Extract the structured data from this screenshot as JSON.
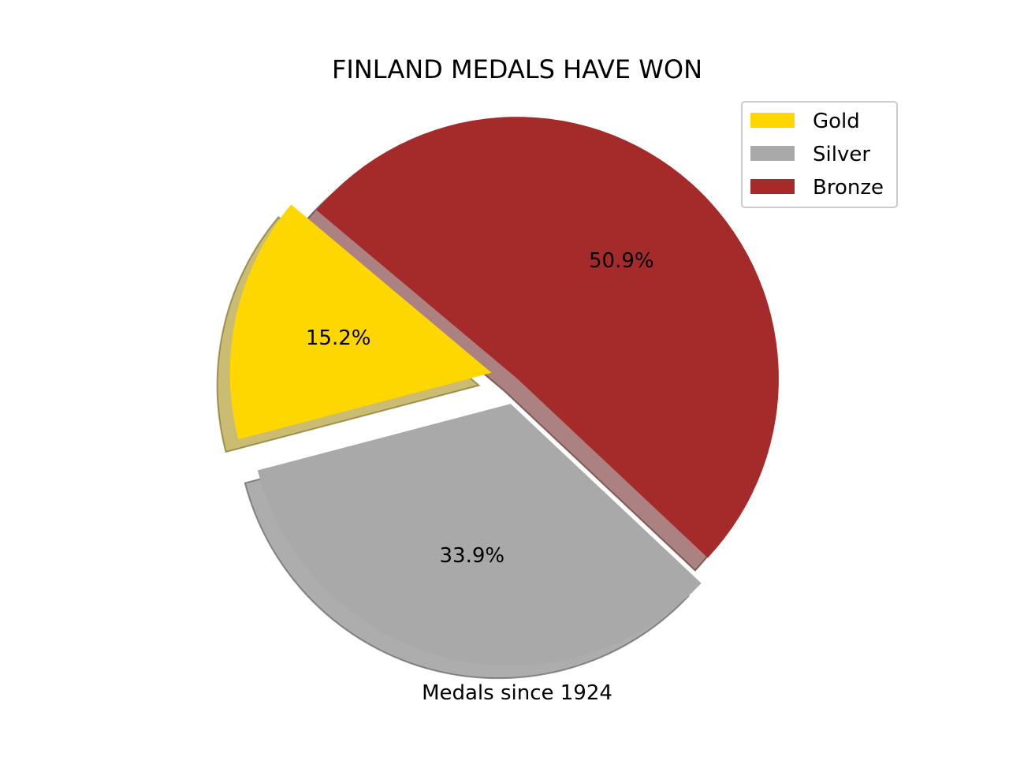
{
  "chart_data": {
    "type": "pie",
    "title": "FINLAND MEDALS HAVE WON",
    "xlabel": "Medals since 1924",
    "ylabel": "",
    "categories": [
      "Gold",
      "Silver",
      "Bronze"
    ],
    "values": [
      15.2,
      33.9,
      50.9
    ],
    "percent_labels": [
      "15.2%",
      "33.9%",
      "50.9%"
    ],
    "colors": [
      "#FFD700",
      "#A9A9A9",
      "#A52A2A"
    ],
    "exploded": [
      true,
      true,
      false
    ],
    "shadow": true,
    "start_angle_deg": 140,
    "legend": {
      "position": "top-right",
      "entries": [
        "Gold",
        "Silver",
        "Bronze"
      ]
    }
  }
}
